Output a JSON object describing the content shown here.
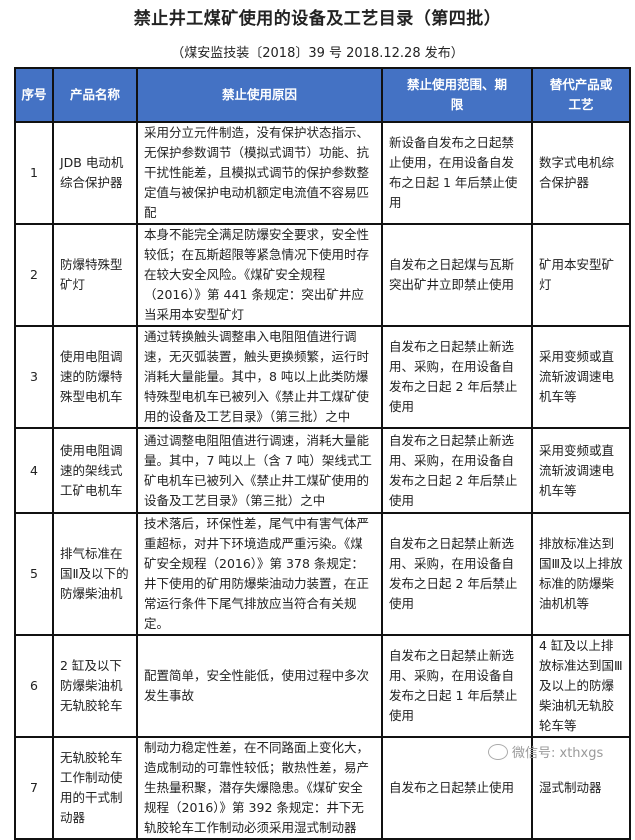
{
  "title": "禁止井工煤矿使用的设备及工艺目录（第四批）",
  "subtitle": "（煤安监技装〔2018〕39 号 2018.12.28 发布）",
  "header_color": "#4472c4",
  "columns": [
    "序号",
    "产品名称",
    "禁止使用原因",
    "禁止使用范围、期限",
    "替代产品或工艺"
  ],
  "rows": [
    {
      "no": "1",
      "name": "JDB 电动机综合保护器",
      "reason": "采用分立元件制造，没有保护状态指示、无保护参数调节（模拟式调节）功能、抗干扰性能差，且模拟式调节的保护参数整定值与被保护电动机额定电流值不容易匹配",
      "scope": "新设备自发布之日起禁止使用，在用设备自发布之日起 1 年后禁止使用",
      "alt": "数字式电机综合保护器"
    },
    {
      "no": "2",
      "name": "防爆特殊型矿灯",
      "reason": "本身不能完全满足防爆安全要求，安全性较低；在瓦斯超限等紧急情况下使用时存在较大安全风险。《煤矿安全规程（2016）》第 441 条规定：突出矿井应当采用本安型矿灯",
      "scope": "自发布之日起煤与瓦斯突出矿井立即禁止使用",
      "alt": "矿用本安型矿灯"
    },
    {
      "no": "3",
      "name": "使用电阻调速的防爆特殊型电机车",
      "reason": "通过转换触头调整串入电阻阻值进行调速，无灭弧装置，触头更换频繁，运行时消耗大量能量。其中，8 吨以上此类防爆特殊型电机车已被列入《禁止井工煤矿使用的设备及工艺目录》（第三批）之中",
      "scope": "自发布之日起禁止新选用、采购，在用设备自发布之日起 2 年后禁止使用",
      "alt": "采用变频或直流斩波调速电机车等"
    },
    {
      "no": "4",
      "name": "使用电阻调速的架线式工矿电机车",
      "reason": "通过调整电阻阻值进行调速，消耗大量能量。其中，7 吨以上（含 7 吨）架线式工矿电机车已被列入《禁止井工煤矿使用的设备及工艺目录》（第三批）之中",
      "scope": "自发布之日起禁止新选用、采购，在用设备自发布之日起 2 年后禁止使用",
      "alt": "采用变频或直流斩波调速电机车等"
    },
    {
      "no": "5",
      "name": "排气标准在国Ⅱ及以下的防爆柴油机",
      "reason": "技术落后，环保性差，尾气中有害气体严重超标，对井下环境造成严重污染。《煤矿安全规程（2016）》第 378 条规定：井下使用的矿用防爆柴油动力装置，在正常运行条件下尾气排放应当符合有关规定。",
      "scope": "自发布之日起禁止新选用、采购，在用设备自发布之日起 2 年后禁止使用",
      "alt": "排放标准达到国Ⅲ及以上排放标准的防爆柴油机机等"
    },
    {
      "no": "6",
      "name": "2 缸及以下防爆柴油机无轨胶轮车",
      "reason": "配置简单，安全性能低，使用过程中多次发生事故",
      "scope": "自发布之日起禁止新选用、采购，在用设备自发布之日起 1 年后禁止使用",
      "alt": "4 缸及以上排放标准达到国Ⅲ及以上的防爆柴油机无轨胶轮车等"
    },
    {
      "no": "7",
      "name": "无轨胶轮车工作制动使用的干式制动器",
      "reason": "制动力稳定性差，在不同路面上变化大，造成制动的可靠性较低；散热性差，易产生热量积聚，潜存失爆隐患。《煤矿安全规程（2016）》第 392 条规定：井下无轨胶轮车工作制动必须采用湿式制动器",
      "scope": "自发布之日起禁止使用",
      "alt": "湿式制动器"
    }
  ],
  "watermark": "微信号: xthxgs"
}
